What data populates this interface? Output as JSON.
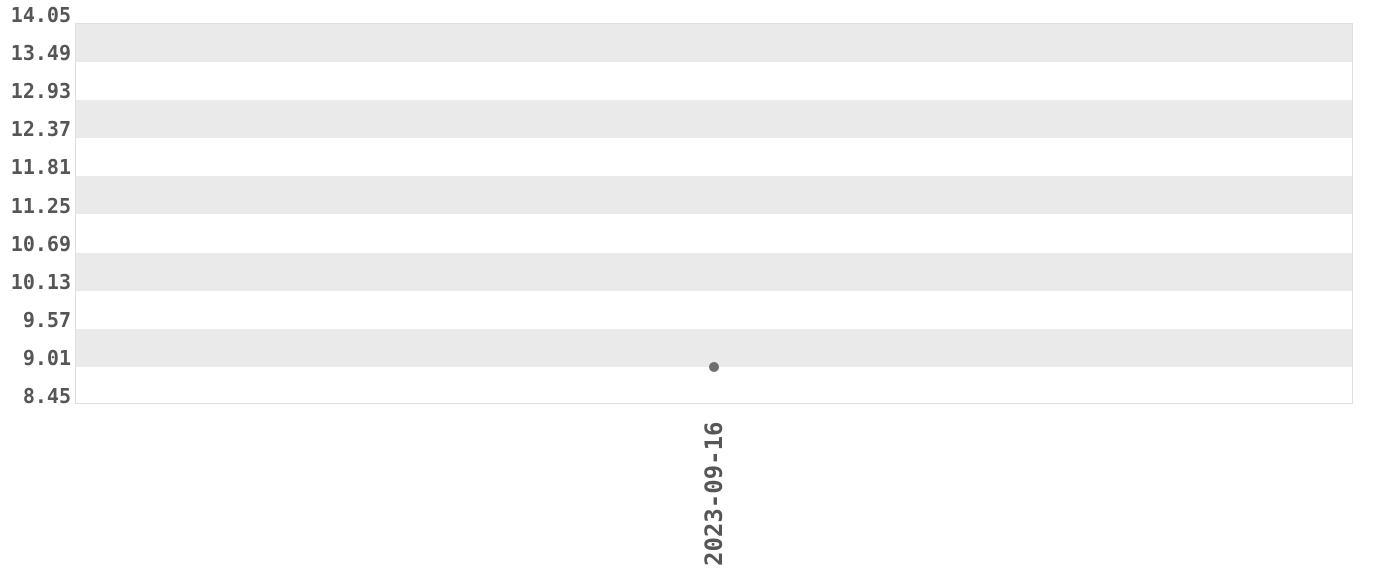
{
  "chart_data": {
    "type": "scatter",
    "title": "",
    "xlabel": "",
    "ylabel": "",
    "legend_position": "none",
    "grid": "alternating-horizontal-bands",
    "x_categories": [
      "2023-09-16"
    ],
    "series": [
      {
        "values": [
          8.99
        ]
      }
    ],
    "y_ticks": [
      8.45,
      9.01,
      9.57,
      10.13,
      10.69,
      11.25,
      11.81,
      12.37,
      12.93,
      13.49,
      14.05
    ],
    "y_tick_labels": [
      "8.45",
      "9.01",
      "9.57",
      "10.13",
      "10.69",
      "11.25",
      "11.81",
      "12.37",
      "12.93",
      "13.49",
      "14.05"
    ],
    "ylim": [
      8.45,
      14.05
    ],
    "x_tick_rotation_degrees": 90,
    "colors": {
      "background": "#ffffff",
      "band_gray": "#eaeaea",
      "band_white": "#ffffff",
      "plot_border": "#dfdfdf",
      "tick_label": "#565656",
      "point": "#6e6e6e"
    }
  }
}
